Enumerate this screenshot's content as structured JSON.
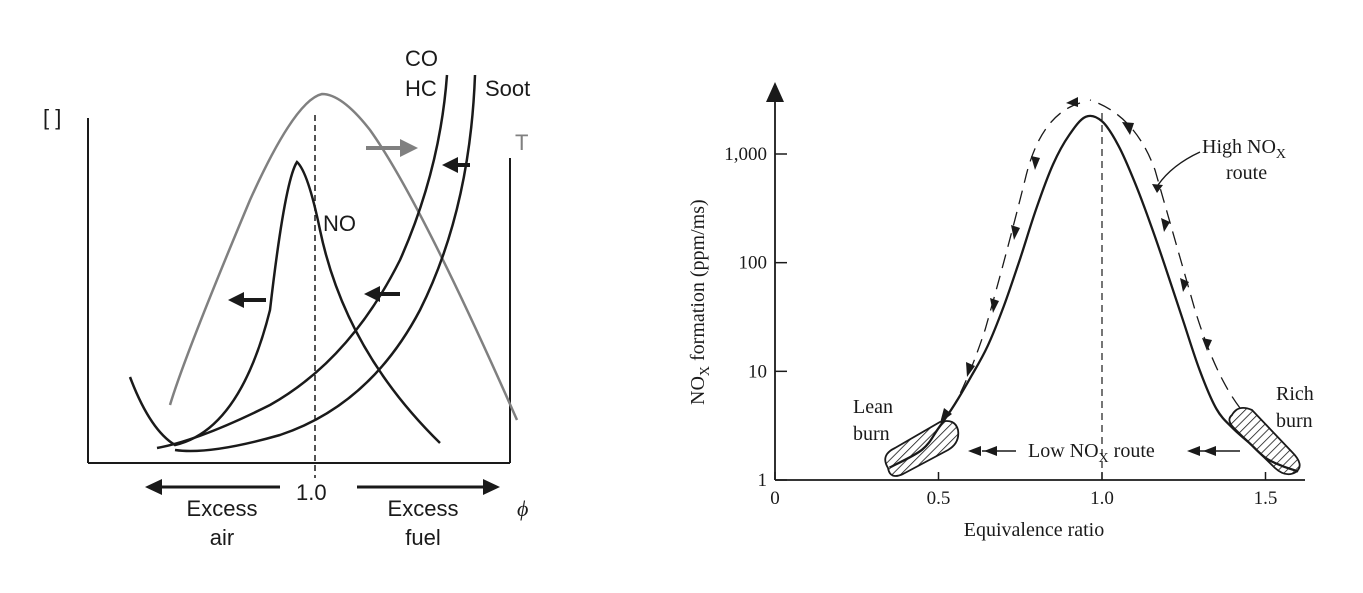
{
  "left_chart": {
    "y_bracket_label": "[ ]",
    "labels": {
      "co": "CO",
      "hc": "HC",
      "soot": "Soot",
      "t": "T",
      "no": "NO",
      "phi_one": "1.0",
      "phi": "ϕ",
      "excess_air_1": "Excess",
      "excess_air_2": "air",
      "excess_fuel_1": "Excess",
      "excess_fuel_2": "fuel"
    },
    "colors": {
      "curve": "#1a1a1a",
      "temperature": "#808080"
    }
  },
  "chart_data": [
    {
      "type": "line",
      "description_free": true,
      "xlabel": "ϕ",
      "x_marker": 1.0,
      "series": [
        {
          "name": "NO"
        },
        {
          "name": "CO"
        },
        {
          "name": "HC"
        },
        {
          "name": "Soot"
        },
        {
          "name": "T"
        }
      ],
      "annotations": [
        "Excess air",
        "Excess fuel"
      ]
    },
    {
      "type": "line",
      "xlabel": "Equivalence ratio",
      "ylabel": "NO",
      "ylabel_sub": "X",
      "ylabel_rest": " formation (ppm/ms)",
      "yscale": "log",
      "xlim": [
        0,
        1.6
      ],
      "ylim": [
        1,
        3000
      ],
      "x_ticks": [
        "0",
        "0.5",
        "1.0",
        "1.5"
      ],
      "y_ticks": [
        "1",
        "10",
        "100",
        "1,000"
      ],
      "x_tick_values": [
        0,
        0.5,
        1.0,
        1.5
      ],
      "y_tick_values": [
        1,
        10,
        100,
        1000
      ],
      "series": [
        {
          "x": [
            0.35,
            0.45,
            0.5,
            0.55,
            0.6,
            0.65,
            0.7,
            0.75,
            0.8,
            0.85,
            0.9,
            0.95,
            1.0,
            1.05,
            1.1,
            1.15,
            1.2,
            1.25,
            1.3,
            1.35,
            1.4,
            1.45,
            1.5,
            1.55,
            1.6
          ],
          "y": [
            1.3,
            1.9,
            3,
            5,
            9,
            17,
            40,
            110,
            320,
            800,
            1500,
            2200,
            2000,
            1200,
            550,
            220,
            80,
            28,
            10,
            4.5,
            3,
            2.2,
            1.6,
            1.35,
            1.2
          ]
        }
      ],
      "annotations": {
        "high_route_1": "High NO",
        "high_route_sub": "X",
        "high_route_2": "route",
        "low_route_1": "Low NO",
        "low_route_sub": "X",
        "low_route_2": " route",
        "lean_1": "Lean",
        "lean_2": "burn",
        "rich_1": "Rich",
        "rich_2": "burn"
      }
    }
  ]
}
